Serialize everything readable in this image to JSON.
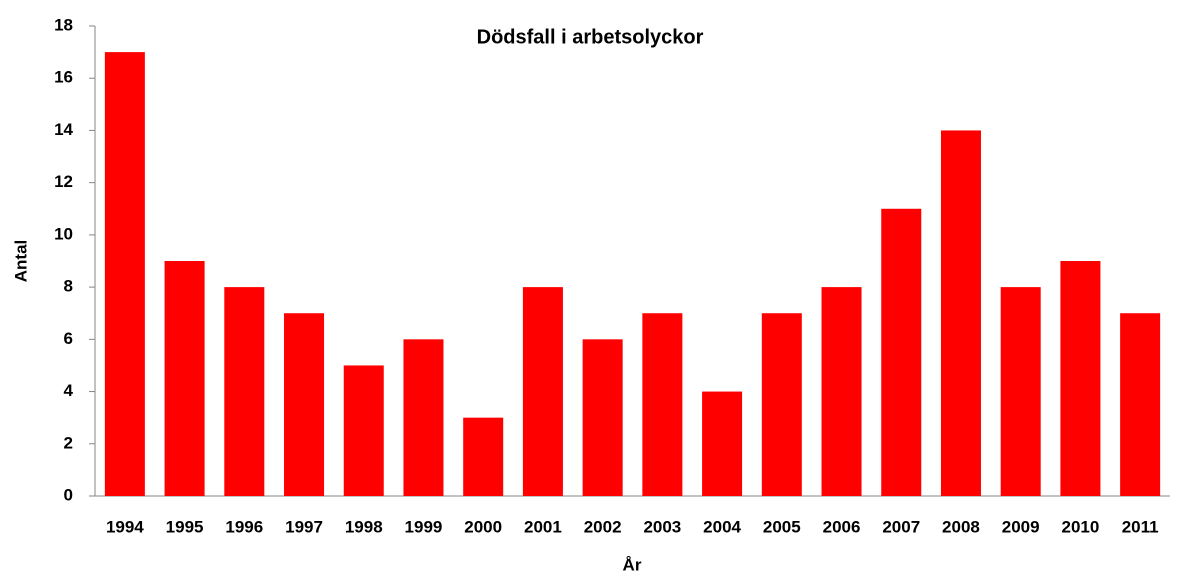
{
  "chart_data": {
    "type": "bar",
    "title": "Dödsfall i arbetsolyckor",
    "x_label": "År",
    "y_label": "Antal",
    "categories": [
      "1994",
      "1995",
      "1996",
      "1997",
      "1998",
      "1999",
      "2000",
      "2001",
      "2002",
      "2003",
      "2004",
      "2005",
      "2006",
      "2007",
      "2008",
      "2009",
      "2010",
      "2011"
    ],
    "values": [
      17,
      9,
      8,
      7,
      5,
      6,
      3,
      8,
      6,
      7,
      4,
      7,
      8,
      11,
      14,
      8,
      9,
      7
    ],
    "color": "#ff0000",
    "ylim": [
      0,
      18
    ],
    "yticks": [
      0,
      2,
      4,
      6,
      8,
      10,
      12,
      14,
      16,
      18
    ],
    "grid": false
  }
}
